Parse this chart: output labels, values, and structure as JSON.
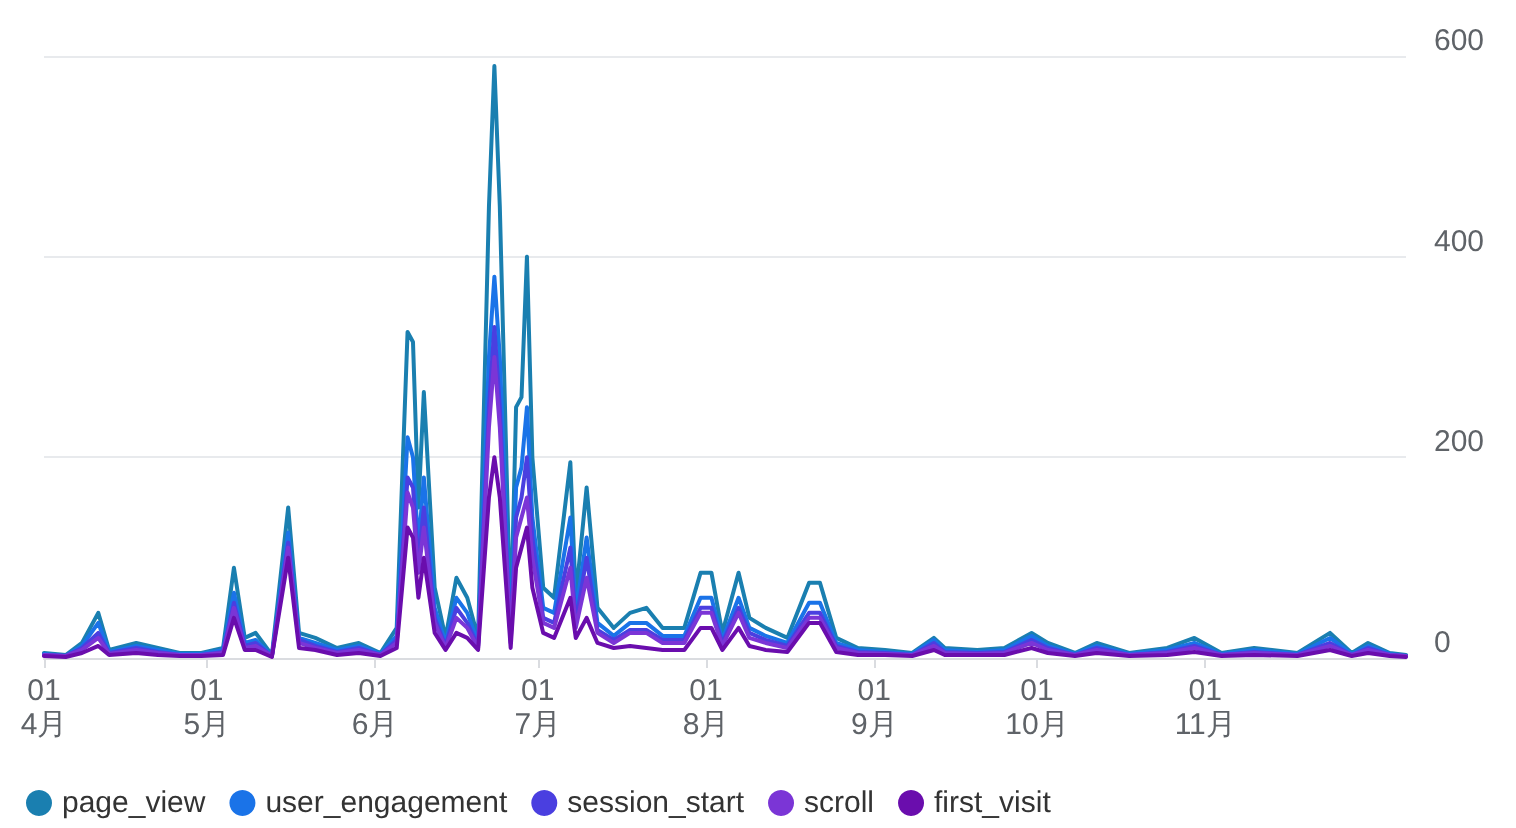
{
  "chart_data": {
    "type": "line",
    "x": [
      "--04-01",
      "--04-05",
      "--04-08",
      "--04-11",
      "--04-13",
      "--04-18",
      "--04-22",
      "--04-26",
      "--04-30",
      "--05-04",
      "--05-06",
      "--05-08",
      "--05-10",
      "--05-13",
      "--05-16",
      "--05-18",
      "--05-21",
      "--05-25",
      "--05-29",
      "--06-02",
      "--06-05",
      "--06-07",
      "--06-08",
      "--06-09",
      "--06-10",
      "--06-12",
      "--06-14",
      "--06-16",
      "--06-18",
      "--06-20",
      "--06-22",
      "--06-23",
      "--06-24",
      "--06-26",
      "--06-27",
      "--06-28",
      "--06-29",
      "--06-30",
      "--07-02",
      "--07-04",
      "--07-07",
      "--07-08",
      "--07-10",
      "--07-12",
      "--07-15",
      "--07-18",
      "--07-21",
      "--07-24",
      "--07-28",
      "--07-31",
      "--08-02",
      "--08-04",
      "--08-07",
      "--08-09",
      "--08-12",
      "--08-16",
      "--08-20",
      "--08-22",
      "--08-25",
      "--08-29",
      "--09-03",
      "--09-08",
      "--09-12",
      "--09-14",
      "--09-20",
      "--09-25",
      "--09-30",
      "--10-03",
      "--10-08",
      "--10-12",
      "--10-18",
      "--10-25",
      "--10-30",
      "--11-04",
      "--11-10",
      "--11-18",
      "--11-24",
      "--11-28",
      "--12-01",
      "--12-05",
      "--12-08"
    ],
    "series": [
      {
        "name": "page_view",
        "color": "#1a7fb0",
        "values": [
          5,
          3,
          15,
          45,
          8,
          15,
          10,
          5,
          5,
          10,
          90,
          20,
          25,
          3,
          150,
          25,
          20,
          10,
          15,
          5,
          30,
          325,
          315,
          150,
          265,
          70,
          20,
          80,
          60,
          20,
          450,
          590,
          450,
          30,
          250,
          260,
          400,
          200,
          70,
          60,
          195,
          60,
          170,
          50,
          30,
          45,
          50,
          30,
          30,
          85,
          85,
          25,
          85,
          40,
          30,
          20,
          75,
          75,
          20,
          10,
          8,
          5,
          20,
          10,
          8,
          10,
          25,
          15,
          5,
          15,
          5,
          10,
          20,
          5,
          10,
          5,
          25,
          5,
          15,
          5,
          3
        ]
      },
      {
        "name": "user_engagement",
        "color": "#1a73e8",
        "values": [
          4,
          2,
          12,
          35,
          6,
          12,
          8,
          4,
          4,
          8,
          65,
          15,
          18,
          2,
          125,
          20,
          15,
          8,
          12,
          4,
          22,
          220,
          200,
          110,
          180,
          50,
          15,
          60,
          45,
          15,
          300,
          380,
          300,
          20,
          170,
          190,
          250,
          140,
          50,
          45,
          140,
          45,
          120,
          35,
          22,
          35,
          35,
          22,
          22,
          60,
          60,
          18,
          60,
          30,
          22,
          15,
          55,
          55,
          15,
          8,
          6,
          4,
          18,
          8,
          6,
          8,
          22,
          12,
          4,
          12,
          4,
          8,
          15,
          4,
          8,
          4,
          20,
          4,
          12,
          4,
          2
        ]
      },
      {
        "name": "session_start",
        "color": "#4a3fe0",
        "values": [
          3,
          2,
          10,
          25,
          5,
          10,
          6,
          3,
          3,
          6,
          55,
          12,
          15,
          2,
          115,
          18,
          12,
          6,
          10,
          3,
          18,
          180,
          170,
          95,
          150,
          40,
          12,
          50,
          35,
          12,
          250,
          330,
          250,
          18,
          140,
          160,
          200,
          120,
          40,
          35,
          110,
          35,
          100,
          28,
          18,
          28,
          28,
          18,
          18,
          50,
          50,
          15,
          50,
          25,
          18,
          12,
          45,
          45,
          12,
          6,
          5,
          3,
          15,
          6,
          5,
          6,
          18,
          10,
          3,
          10,
          3,
          6,
          12,
          3,
          6,
          3,
          15,
          3,
          10,
          3,
          2
        ]
      },
      {
        "name": "scroll",
        "color": "#7b35d6",
        "values": [
          3,
          2,
          8,
          20,
          4,
          8,
          5,
          3,
          3,
          5,
          50,
          10,
          12,
          2,
          110,
          15,
          10,
          5,
          8,
          3,
          15,
          165,
          150,
          85,
          130,
          35,
          10,
          40,
          30,
          10,
          230,
          300,
          230,
          15,
          120,
          140,
          160,
          100,
          35,
          30,
          90,
          30,
          80,
          25,
          15,
          25,
          25,
          15,
          15,
          45,
          45,
          12,
          45,
          20,
          15,
          10,
          40,
          40,
          10,
          5,
          4,
          3,
          12,
          5,
          4,
          5,
          15,
          8,
          3,
          8,
          3,
          5,
          10,
          3,
          5,
          3,
          12,
          3,
          8,
          3,
          2
        ]
      },
      {
        "name": "first_visit",
        "color": "#6a0dad",
        "values": [
          2,
          1,
          5,
          12,
          3,
          5,
          3,
          2,
          2,
          3,
          40,
          8,
          8,
          1,
          100,
          10,
          8,
          3,
          5,
          2,
          10,
          130,
          120,
          60,
          100,
          25,
          8,
          25,
          20,
          8,
          160,
          200,
          160,
          10,
          90,
          110,
          130,
          70,
          25,
          20,
          60,
          20,
          40,
          15,
          10,
          12,
          10,
          8,
          8,
          30,
          30,
          8,
          30,
          12,
          8,
          6,
          35,
          35,
          6,
          3,
          3,
          2,
          8,
          3,
          3,
          3,
          10,
          5,
          2,
          5,
          2,
          3,
          6,
          2,
          3,
          2,
          8,
          2,
          5,
          2,
          1
        ]
      }
    ],
    "xlim": [
      "--04-01",
      "--12-08"
    ],
    "xticks": [
      {
        "value": "--04-01",
        "label": "01\n4月"
      },
      {
        "value": "--05-01",
        "label": "01\n5月"
      },
      {
        "value": "--06-01",
        "label": "01\n6月"
      },
      {
        "value": "--07-01",
        "label": "01\n7月"
      },
      {
        "value": "--08-01",
        "label": "01\n8月"
      },
      {
        "value": "--09-01",
        "label": "01\n9月"
      },
      {
        "value": "--10-01",
        "label": "01\n10月"
      },
      {
        "value": "--11-01",
        "label": "01\n11月"
      }
    ],
    "ylim": [
      0,
      600
    ],
    "yticks": [
      0,
      200,
      400,
      600
    ],
    "grid": "y",
    "legend": "bottom left",
    "marker": "none",
    "line_style": "solid"
  }
}
